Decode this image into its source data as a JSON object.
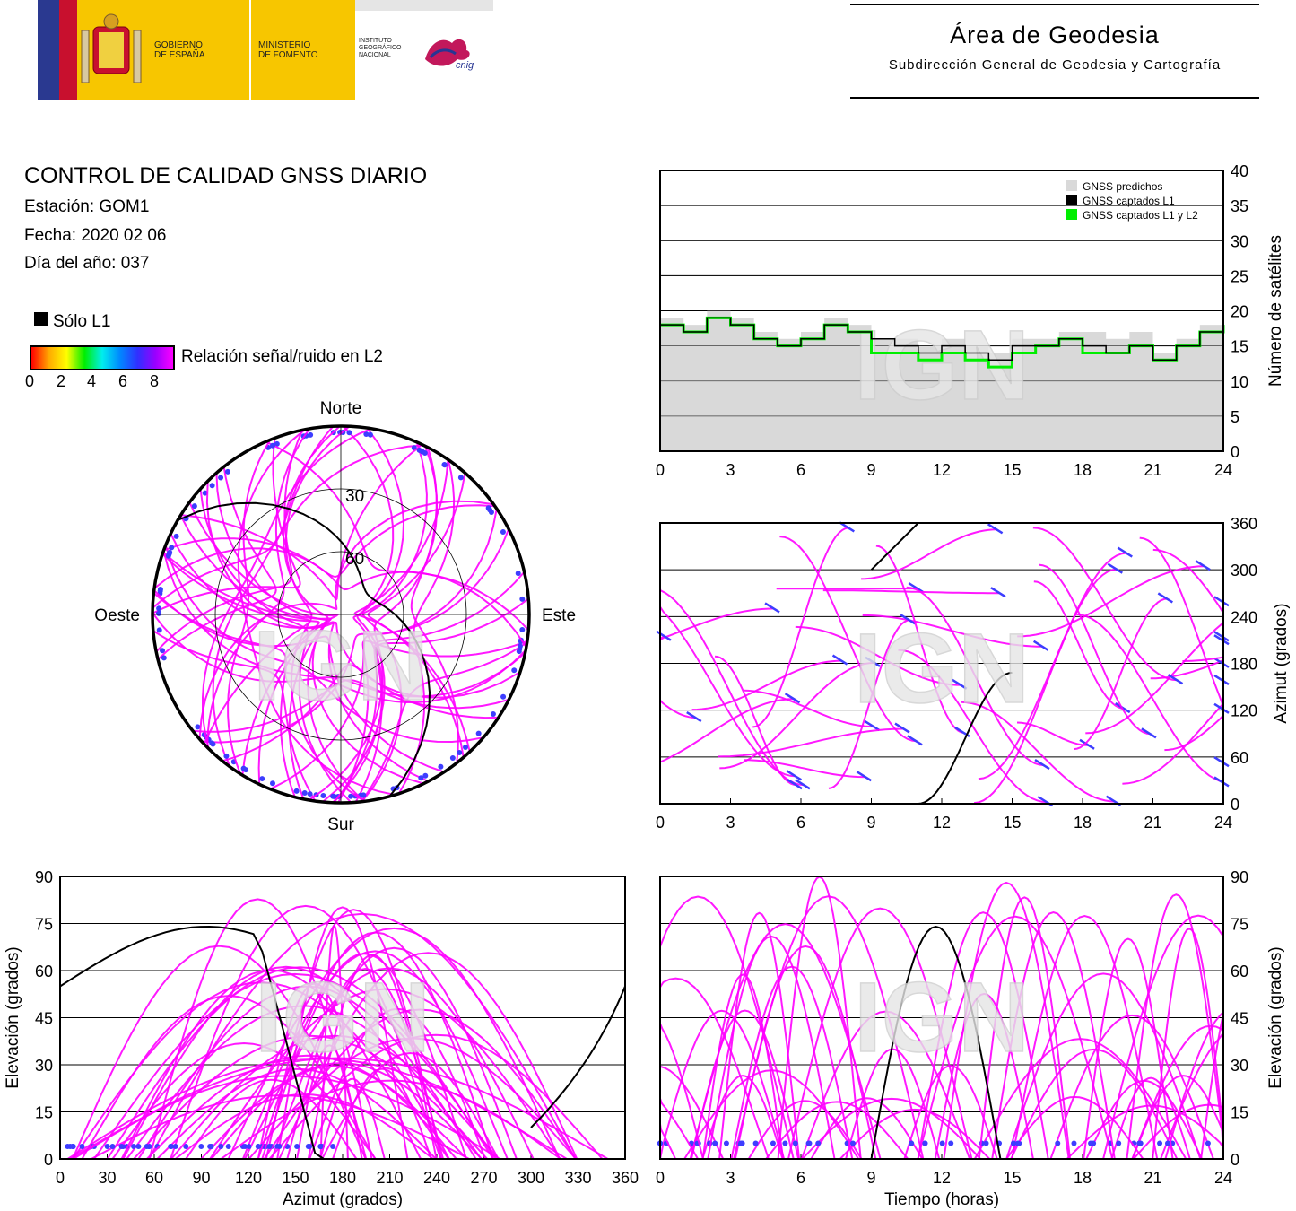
{
  "header": {
    "gobierno": [
      "GOBIERNO",
      "DE ESPAÑA"
    ],
    "ministerio": [
      "MINISTERIO",
      "DE FOMENTO"
    ],
    "instituto": [
      "INSTITUTO",
      "GEOGRÁFICO",
      "NACIONAL"
    ],
    "cnig": "cnig",
    "area_title": "Área de Geodesia",
    "area_subtitle": "Subdirección General de Geodesia y Cartografía"
  },
  "info": {
    "title": "CONTROL DE CALIDAD GNSS DIARIO",
    "station": "Estación: GOM1",
    "date": "Fecha: 2020 02 06",
    "doy": "Día del año: 037"
  },
  "legend": {
    "solo_l1": "Sólo L1",
    "snr_label": "Relación señal/ruido en L2",
    "snr_ticks": [
      "0",
      "2",
      "4",
      "6",
      "8"
    ]
  },
  "watermark": "IGN",
  "colors": {
    "track": "#ff00ff",
    "low_snr": "#3d3dff",
    "l1_only": "#000000",
    "predicted_fill": "#d9d9d9",
    "l1l2_line": "#00ee00"
  },
  "chart_data": [
    {
      "id": "satellite-count",
      "type": "area",
      "ylabel": "Número de satélites",
      "xlim": [
        0,
        24
      ],
      "ylim": [
        0,
        40
      ],
      "xticks": [
        "0",
        "3",
        "6",
        "9",
        "12",
        "15",
        "18",
        "21",
        "24"
      ],
      "yticks": [
        "0",
        "5",
        "10",
        "15",
        "20",
        "25",
        "30",
        "35",
        "40"
      ],
      "legend": [
        "GNSS predichos",
        "GNSS captados L1",
        "GNSS captados L1 y L2"
      ],
      "legend_position": "top-right",
      "grid": true,
      "x": [
        0,
        1,
        2,
        3,
        4,
        5,
        6,
        7,
        8,
        9,
        10,
        11,
        12,
        13,
        14,
        15,
        16,
        17,
        18,
        19,
        20,
        21,
        22,
        23,
        24
      ],
      "series": [
        {
          "name": "GNSS predichos",
          "values": [
            19,
            18,
            20,
            19,
            17,
            16,
            17,
            19,
            18,
            16,
            16,
            15,
            16,
            15,
            14,
            16,
            16,
            17,
            17,
            16,
            17,
            14,
            16,
            18,
            19
          ]
        },
        {
          "name": "GNSS captados L1",
          "values": [
            18,
            17,
            19,
            18,
            16,
            15,
            16,
            18,
            17,
            16,
            15,
            14,
            15,
            14,
            13,
            15,
            15,
            16,
            15,
            14,
            15,
            13,
            15,
            17,
            18
          ]
        },
        {
          "name": "GNSS captados L1 y L2",
          "values": [
            18,
            17,
            19,
            18,
            16,
            15,
            16,
            18,
            17,
            14,
            14,
            13,
            14,
            13,
            12,
            14,
            15,
            16,
            14,
            14,
            15,
            13,
            15,
            17,
            18
          ]
        }
      ]
    },
    {
      "id": "skyplot",
      "type": "scatter",
      "direction_labels": {
        "north": "Norte",
        "south": "Sur",
        "east": "Este",
        "west": "Oeste"
      },
      "elevation_rings": [
        "30",
        "60"
      ]
    },
    {
      "id": "azimuth-time",
      "type": "scatter",
      "ylabel": "Azimut (grados)",
      "xlim": [
        0,
        24
      ],
      "ylim": [
        0,
        360
      ],
      "xticks": [
        "0",
        "3",
        "6",
        "9",
        "12",
        "15",
        "18",
        "21",
        "24"
      ],
      "yticks": [
        "0",
        "60",
        "120",
        "180",
        "240",
        "300",
        "360"
      ],
      "grid": true
    },
    {
      "id": "elevation-azimuth",
      "type": "scatter",
      "xlabel": "Azimut (grados)",
      "ylabel": "Elevación (grados)",
      "xlim": [
        0,
        360
      ],
      "ylim": [
        0,
        90
      ],
      "xticks": [
        "0",
        "30",
        "60",
        "90",
        "120",
        "150",
        "180",
        "210",
        "240",
        "270",
        "300",
        "330",
        "360"
      ],
      "yticks": [
        "0",
        "15",
        "30",
        "45",
        "60",
        "75",
        "90"
      ],
      "grid": true
    },
    {
      "id": "elevation-time",
      "type": "scatter",
      "xlabel": "Tiempo (horas)",
      "ylabel": "Elevación (grados)",
      "xlim": [
        0,
        24
      ],
      "ylim": [
        0,
        90
      ],
      "xticks": [
        "0",
        "3",
        "6",
        "9",
        "12",
        "15",
        "18",
        "21",
        "24"
      ],
      "yticks": [
        "0",
        "15",
        "30",
        "45",
        "60",
        "75",
        "90"
      ],
      "grid": true
    }
  ]
}
